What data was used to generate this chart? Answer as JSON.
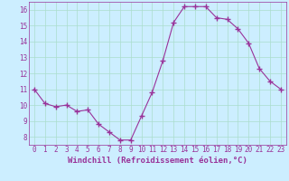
{
  "x": [
    0,
    1,
    2,
    3,
    4,
    5,
    6,
    7,
    8,
    9,
    10,
    11,
    12,
    13,
    14,
    15,
    16,
    17,
    18,
    19,
    20,
    21,
    22,
    23
  ],
  "y": [
    11.0,
    10.1,
    9.9,
    10.0,
    9.6,
    9.7,
    8.8,
    8.3,
    7.8,
    7.8,
    9.3,
    10.8,
    12.8,
    15.2,
    16.2,
    16.2,
    16.2,
    15.5,
    15.4,
    14.8,
    13.9,
    12.3,
    11.5,
    11.0
  ],
  "line_color": "#993399",
  "marker": "+",
  "marker_size": 4,
  "bg_color": "#cceeff",
  "grid_color": "#aaddcc",
  "xlabel": "Windchill (Refroidissement éolien,°C)",
  "xlabel_color": "#993399",
  "tick_color": "#993399",
  "ylim": [
    7.5,
    16.5
  ],
  "xlim": [
    -0.5,
    23.5
  ],
  "yticks": [
    8,
    9,
    10,
    11,
    12,
    13,
    14,
    15,
    16
  ],
  "xticks": [
    0,
    1,
    2,
    3,
    4,
    5,
    6,
    7,
    8,
    9,
    10,
    11,
    12,
    13,
    14,
    15,
    16,
    17,
    18,
    19,
    20,
    21,
    22,
    23
  ],
  "tick_fontsize": 5.5,
  "xlabel_fontsize": 6.5
}
